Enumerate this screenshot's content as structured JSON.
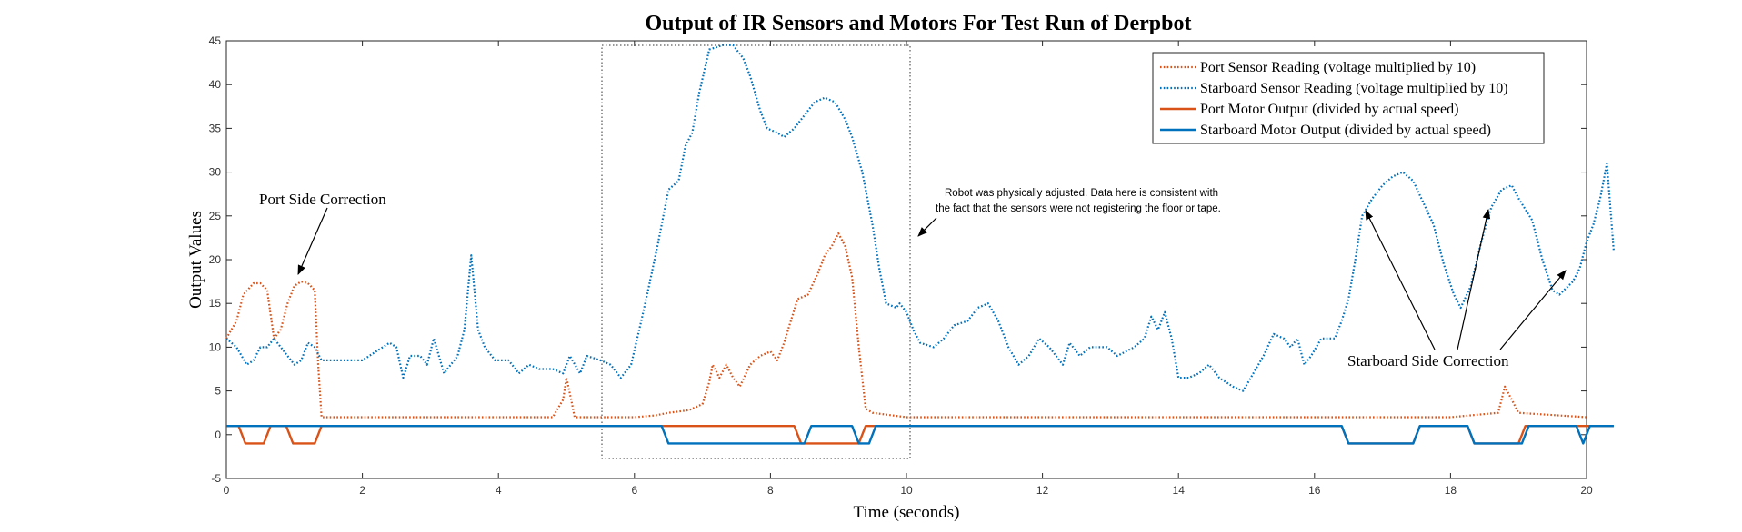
{
  "chart_data": {
    "type": "line",
    "title": "Output of IR Sensors and Motors For Test Run of Derpbot",
    "xlabel": "Time (seconds)",
    "ylabel": "Output Values",
    "xlim": [
      0,
      20
    ],
    "ylim": [
      -5,
      45
    ],
    "xticks": [
      "0",
      "2",
      "4",
      "6",
      "8",
      "10",
      "12",
      "14",
      "16",
      "18",
      "20"
    ],
    "yticks": [
      "-5",
      "0",
      "5",
      "10",
      "15",
      "20",
      "25",
      "30",
      "35",
      "40",
      "45"
    ],
    "grid": false,
    "legend_position": "top-right",
    "colors": {
      "port": "#D95319",
      "starboard": "#0072BD"
    },
    "series": [
      {
        "name": "Port Sensor Reading (voltage multiplied by 10)",
        "style": "dotted",
        "color": "#D95319",
        "points": [
          [
            0,
            11
          ],
          [
            0.15,
            13
          ],
          [
            0.25,
            16
          ],
          [
            0.4,
            17.3
          ],
          [
            0.5,
            17.3
          ],
          [
            0.6,
            16.5
          ],
          [
            0.7,
            11
          ],
          [
            0.8,
            12
          ],
          [
            0.9,
            15
          ],
          [
            1.0,
            17
          ],
          [
            1.1,
            17.5
          ],
          [
            1.2,
            17.3
          ],
          [
            1.3,
            16.5
          ],
          [
            1.35,
            8
          ],
          [
            1.4,
            2
          ],
          [
            2,
            2
          ],
          [
            3,
            2
          ],
          [
            4,
            2
          ],
          [
            4.8,
            2
          ],
          [
            4.95,
            4
          ],
          [
            5.0,
            6.5
          ],
          [
            5.07,
            4
          ],
          [
            5.12,
            2
          ],
          [
            6,
            2
          ],
          [
            6.3,
            2.2
          ],
          [
            6.5,
            2.5
          ],
          [
            6.8,
            2.8
          ],
          [
            7.0,
            3.5
          ],
          [
            7.1,
            6
          ],
          [
            7.15,
            8
          ],
          [
            7.25,
            6.5
          ],
          [
            7.35,
            8
          ],
          [
            7.45,
            6.5
          ],
          [
            7.55,
            5.5
          ],
          [
            7.7,
            8
          ],
          [
            7.85,
            9
          ],
          [
            8.0,
            9.5
          ],
          [
            8.1,
            8.5
          ],
          [
            8.2,
            10.5
          ],
          [
            8.3,
            13
          ],
          [
            8.4,
            15.5
          ],
          [
            8.55,
            16
          ],
          [
            8.7,
            18.5
          ],
          [
            8.8,
            20.5
          ],
          [
            8.9,
            21.5
          ],
          [
            9.0,
            23
          ],
          [
            9.1,
            21.5
          ],
          [
            9.2,
            18
          ],
          [
            9.3,
            10
          ],
          [
            9.4,
            3
          ],
          [
            9.5,
            2.5
          ],
          [
            10,
            2
          ],
          [
            12,
            2
          ],
          [
            14,
            2
          ],
          [
            16,
            2
          ],
          [
            18,
            2
          ],
          [
            18.7,
            2.5
          ],
          [
            18.8,
            5.5
          ],
          [
            18.9,
            4
          ],
          [
            19.0,
            2.5
          ],
          [
            20,
            2
          ]
        ]
      },
      {
        "name": "Starboard Sensor Reading (voltage multiplied by 10)",
        "style": "dotted",
        "color": "#0072BD",
        "points": [
          [
            0,
            11
          ],
          [
            0.15,
            10
          ],
          [
            0.3,
            8
          ],
          [
            0.4,
            8.5
          ],
          [
            0.5,
            10
          ],
          [
            0.6,
            10
          ],
          [
            0.7,
            11
          ],
          [
            0.8,
            10
          ],
          [
            0.9,
            9
          ],
          [
            1.0,
            8
          ],
          [
            1.1,
            8.5
          ],
          [
            1.2,
            10.5
          ],
          [
            1.3,
            10
          ],
          [
            1.4,
            8.5
          ],
          [
            1.6,
            8.5
          ],
          [
            2.0,
            8.5
          ],
          [
            2.2,
            9.5
          ],
          [
            2.4,
            10.5
          ],
          [
            2.5,
            10
          ],
          [
            2.6,
            6.5
          ],
          [
            2.7,
            9
          ],
          [
            2.85,
            9
          ],
          [
            2.95,
            8
          ],
          [
            3.05,
            11
          ],
          [
            3.2,
            7
          ],
          [
            3.4,
            9
          ],
          [
            3.5,
            12
          ],
          [
            3.6,
            20.5
          ],
          [
            3.7,
            12
          ],
          [
            3.8,
            10
          ],
          [
            3.95,
            8.5
          ],
          [
            4.15,
            8.5
          ],
          [
            4.3,
            7
          ],
          [
            4.45,
            8
          ],
          [
            4.6,
            7.5
          ],
          [
            4.8,
            7.5
          ],
          [
            4.95,
            7
          ],
          [
            5.05,
            9
          ],
          [
            5.2,
            7
          ],
          [
            5.3,
            9
          ],
          [
            5.5,
            8.5
          ],
          [
            5.65,
            8
          ],
          [
            5.8,
            6.5
          ],
          [
            5.95,
            8
          ],
          [
            6.1,
            13
          ],
          [
            6.2,
            16.5
          ],
          [
            6.35,
            22
          ],
          [
            6.5,
            28
          ],
          [
            6.65,
            29
          ],
          [
            6.75,
            33
          ],
          [
            6.85,
            34.5
          ],
          [
            6.95,
            39
          ],
          [
            7.1,
            44
          ],
          [
            7.3,
            44.5
          ],
          [
            7.45,
            44.5
          ],
          [
            7.6,
            43
          ],
          [
            7.7,
            41
          ],
          [
            7.85,
            37
          ],
          [
            7.95,
            35
          ],
          [
            8.1,
            34.5
          ],
          [
            8.2,
            34
          ],
          [
            8.35,
            35
          ],
          [
            8.5,
            36.5
          ],
          [
            8.65,
            38
          ],
          [
            8.8,
            38.5
          ],
          [
            8.95,
            38
          ],
          [
            9.1,
            36
          ],
          [
            9.2,
            34
          ],
          [
            9.35,
            30
          ],
          [
            9.5,
            24
          ],
          [
            9.6,
            19
          ],
          [
            9.7,
            15
          ],
          [
            9.85,
            14.5
          ],
          [
            9.9,
            15
          ],
          [
            10.0,
            14
          ],
          [
            10.1,
            12
          ],
          [
            10.2,
            10.5
          ],
          [
            10.4,
            10
          ],
          [
            10.55,
            11
          ],
          [
            10.7,
            12.5
          ],
          [
            10.9,
            13
          ],
          [
            11.05,
            14.5
          ],
          [
            11.2,
            15
          ],
          [
            11.35,
            13
          ],
          [
            11.5,
            10
          ],
          [
            11.65,
            8
          ],
          [
            11.8,
            9
          ],
          [
            11.95,
            11
          ],
          [
            12.1,
            10
          ],
          [
            12.3,
            8
          ],
          [
            12.4,
            10.5
          ],
          [
            12.55,
            9
          ],
          [
            12.7,
            10
          ],
          [
            12.95,
            10
          ],
          [
            13.1,
            9
          ],
          [
            13.35,
            10
          ],
          [
            13.5,
            11
          ],
          [
            13.6,
            13.5
          ],
          [
            13.7,
            12
          ],
          [
            13.8,
            14
          ],
          [
            13.9,
            11
          ],
          [
            14.0,
            6.5
          ],
          [
            14.15,
            6.5
          ],
          [
            14.3,
            7
          ],
          [
            14.45,
            8
          ],
          [
            14.6,
            6.5
          ],
          [
            14.8,
            5.5
          ],
          [
            14.95,
            5
          ],
          [
            15.1,
            7
          ],
          [
            15.25,
            9
          ],
          [
            15.4,
            11.5
          ],
          [
            15.55,
            11
          ],
          [
            15.65,
            10
          ],
          [
            15.75,
            11
          ],
          [
            15.85,
            8
          ],
          [
            15.95,
            9
          ],
          [
            16.1,
            11
          ],
          [
            16.3,
            11
          ],
          [
            16.4,
            13
          ],
          [
            16.5,
            15.5
          ],
          [
            16.6,
            20
          ],
          [
            16.7,
            25
          ],
          [
            16.85,
            27
          ],
          [
            17.0,
            28.5
          ],
          [
            17.15,
            29.5
          ],
          [
            17.3,
            30
          ],
          [
            17.45,
            29
          ],
          [
            17.6,
            26.5
          ],
          [
            17.75,
            24
          ],
          [
            17.9,
            19.5
          ],
          [
            18.05,
            16
          ],
          [
            18.15,
            14.5
          ],
          [
            18.3,
            17
          ],
          [
            18.45,
            22
          ],
          [
            18.6,
            26
          ],
          [
            18.75,
            28
          ],
          [
            18.9,
            28.5
          ],
          [
            19.0,
            27
          ],
          [
            19.2,
            24.5
          ],
          [
            19.35,
            20
          ],
          [
            19.5,
            16.5
          ],
          [
            19.6,
            16
          ],
          [
            19.8,
            17.5
          ],
          [
            19.9,
            19
          ],
          [
            20.0,
            22
          ],
          [
            20.1,
            24
          ],
          [
            20.2,
            27
          ],
          [
            20.3,
            31
          ],
          [
            20.4,
            21
          ]
        ]
      },
      {
        "name": "Port Motor Output (divided by actual speed)",
        "style": "solid",
        "color": "#D95319",
        "points": [
          [
            0,
            1
          ],
          [
            0.18,
            1
          ],
          [
            0.28,
            -1
          ],
          [
            0.55,
            -1
          ],
          [
            0.65,
            1
          ],
          [
            0.88,
            1
          ],
          [
            0.98,
            -1
          ],
          [
            1.3,
            -1
          ],
          [
            1.4,
            1
          ],
          [
            8.35,
            1
          ],
          [
            8.45,
            -1
          ],
          [
            9.3,
            -1
          ],
          [
            9.4,
            1
          ],
          [
            16.4,
            1
          ],
          [
            16.5,
            -1
          ],
          [
            17.45,
            -1
          ],
          [
            17.55,
            1
          ],
          [
            18.25,
            1
          ],
          [
            18.35,
            -1
          ],
          [
            19.0,
            -1
          ],
          [
            19.1,
            1
          ],
          [
            20.4,
            1
          ]
        ]
      },
      {
        "name": "Starboard Motor Output (divided by actual speed)",
        "style": "solid",
        "color": "#0072BD",
        "points": [
          [
            0,
            1
          ],
          [
            6.4,
            1
          ],
          [
            6.5,
            -1
          ],
          [
            8.5,
            -1
          ],
          [
            8.6,
            1
          ],
          [
            9.2,
            1
          ],
          [
            9.3,
            -1
          ],
          [
            9.45,
            -1
          ],
          [
            9.55,
            1
          ],
          [
            16.4,
            1
          ],
          [
            16.5,
            -1
          ],
          [
            17.45,
            -1
          ],
          [
            17.55,
            1
          ],
          [
            18.25,
            1
          ],
          [
            18.35,
            -1
          ],
          [
            19.05,
            -1
          ],
          [
            19.15,
            1
          ],
          [
            19.85,
            1
          ],
          [
            19.95,
            -1
          ],
          [
            20.05,
            1
          ],
          [
            20.4,
            1
          ]
        ]
      }
    ],
    "annotations": {
      "port_side": "Port Side Correction",
      "adjusted_line1": "Robot was physically adjusted. Data here is consistent with",
      "adjusted_line2": "the fact that the sensors were not registering the floor or tape.",
      "starboard_side": "Starboard Side Correction"
    }
  }
}
